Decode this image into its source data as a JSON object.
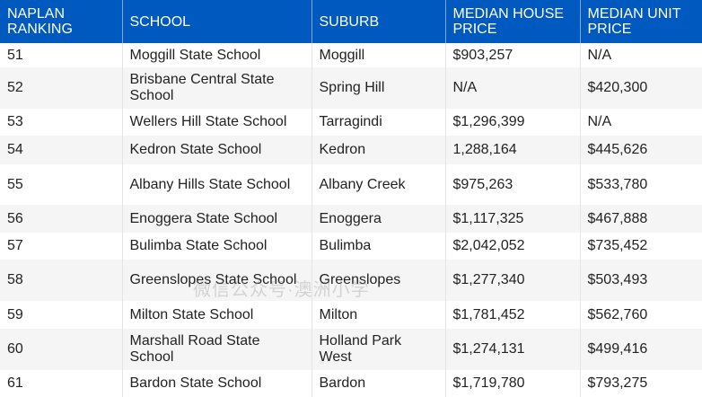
{
  "headers": [
    "NAPLAN RANKING",
    "SCHOOL",
    "SUBURB",
    "MEDIAN HOUSE PRICE",
    "MEDIAN UNIT PRICE"
  ],
  "rows": [
    [
      "51",
      "Moggill State School",
      "Moggill",
      "$903,257",
      "N/A"
    ],
    [
      "52",
      "Brisbane Central State School",
      "Spring Hill",
      "N/A",
      "$420,300"
    ],
    [
      "53",
      "Wellers Hill State School",
      "Tarragindi",
      "$1,296,399",
      "N/A"
    ],
    [
      "54",
      "Kedron State School",
      "Kedron",
      "1,288,164",
      "$445,626"
    ],
    [
      "55",
      "Albany Hills State School",
      "Albany Creek",
      "$975,263",
      "$533,780"
    ],
    [
      "56",
      "Enoggera State School",
      "Enoggera",
      "$1,117,325",
      "$467,888"
    ],
    [
      "57",
      "Bulimba State School",
      "Bulimba",
      "$2,042,052",
      "$735,452"
    ],
    [
      "58",
      "Greenslopes State School",
      "Greenslopes",
      "$1,277,340",
      "$503,493"
    ],
    [
      "59",
      "Milton State School",
      "Milton",
      "$1,781,452",
      "$562,760"
    ],
    [
      "60",
      "Marshall Road State School",
      "Holland Park West",
      "$1,274,131",
      "$499,416"
    ],
    [
      "61",
      "Bardon State School",
      "Bardon",
      "$1,719,780",
      "$793,275"
    ]
  ],
  "watermark": "微信公众号·澳洲小学",
  "colors": {
    "header_bg": "#0059be",
    "alt_row": "#f5f5f5"
  }
}
